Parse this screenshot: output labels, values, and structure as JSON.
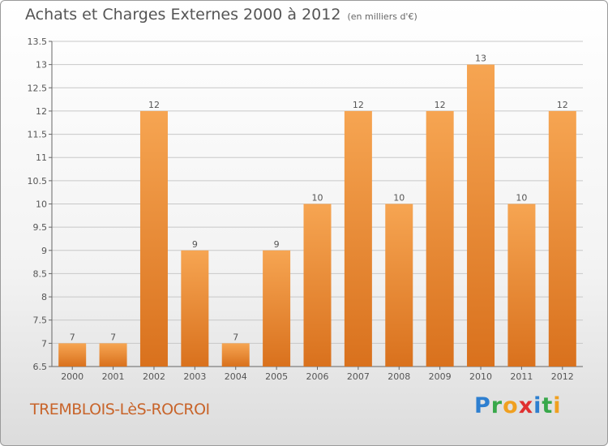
{
  "header": {
    "title": "Achats et Charges Externes 2000 à 2012",
    "subtitle": "(en milliers d'€)"
  },
  "footer": {
    "commune": "TREMBLOIS-LèS-ROCROI",
    "brand_letters": [
      "P",
      "r",
      "o",
      "x",
      "i",
      "t",
      "i"
    ]
  },
  "colors": {
    "bar_light": "#f6a552",
    "bar_dark": "#d9711d",
    "grid": "#c8c8c8"
  },
  "chart_data": {
    "type": "bar",
    "title": "Achats et Charges Externes 2000 à 2012",
    "subtitle": "(en milliers d'€)",
    "categories": [
      "2000",
      "2001",
      "2002",
      "2003",
      "2004",
      "2005",
      "2006",
      "2007",
      "2008",
      "2009",
      "2010",
      "2011",
      "2012"
    ],
    "values": [
      7,
      7,
      12,
      9,
      7,
      9,
      10,
      12,
      10,
      12,
      13,
      10,
      12
    ],
    "value_labels": [
      "7",
      "7",
      "12",
      "9",
      "7",
      "9",
      "10",
      "12",
      "10",
      "12",
      "13",
      "10",
      "12"
    ],
    "ylim": [
      6.5,
      13.5
    ],
    "yticks": [
      6.5,
      7,
      7.5,
      8,
      8.5,
      9,
      9.5,
      10,
      10.5,
      11,
      11.5,
      12,
      12.5,
      13,
      13.5
    ],
    "ytick_labels": [
      "6.5",
      "7",
      "7.5",
      "8",
      "8.5",
      "9",
      "9.5",
      "10",
      "10.5",
      "11",
      "11.5",
      "12",
      "12.5",
      "13",
      "13.5"
    ],
    "grid": true,
    "xlabel": "",
    "ylabel": ""
  }
}
